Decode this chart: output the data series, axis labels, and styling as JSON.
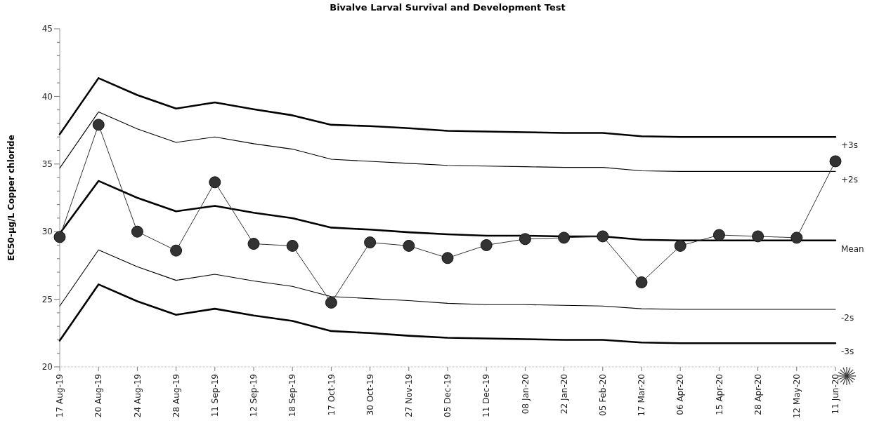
{
  "chart_data": {
    "type": "line",
    "title": "Bivalve Larval Survival and Development Test",
    "ylabel": "EC50-µg/L Copper chloride",
    "categories": [
      "17 Aug-19",
      "20 Aug-19",
      "24 Aug-19",
      "28 Aug-19",
      "11 Sep-19",
      "12 Sep-19",
      "18 Sep-19",
      "17 Oct-19",
      "30 Oct-19",
      "27 Nov-19",
      "05 Dec-19",
      "11 Dec-19",
      "08 Jan-20",
      "22 Jan-20",
      "05 Feb-20",
      "17 Mar-20",
      "06 Apr-20",
      "15 Apr-20",
      "28 Apr-20",
      "12 May-20",
      "11 Jun-20"
    ],
    "ylim": [
      20,
      45
    ],
    "yticks": [
      20,
      {
        "value": 21,
        "label": null
      },
      {
        "value": 22,
        "label": null
      },
      {
        "value": 23,
        "label": null
      },
      {
        "value": 24,
        "label": null
      },
      25,
      {
        "value": 26,
        "label": null
      },
      {
        "value": 27,
        "label": null
      },
      {
        "value": 28,
        "label": null
      },
      {
        "value": 29,
        "label": null
      },
      30,
      {
        "value": 31,
        "label": null
      },
      {
        "value": 32,
        "label": null
      },
      {
        "value": 33,
        "label": null
      },
      {
        "value": 34,
        "label": null
      },
      35,
      {
        "value": 36,
        "label": null
      },
      {
        "value": 37,
        "label": null
      },
      {
        "value": 38,
        "label": null
      },
      {
        "value": 39,
        "label": null
      },
      40,
      {
        "value": 41,
        "label": null
      },
      {
        "value": 42,
        "label": null
      },
      {
        "value": 43,
        "label": null
      },
      {
        "value": 44,
        "label": null
      },
      45
    ],
    "grid": false,
    "line_style": "solid",
    "series": [
      {
        "name": "+3s",
        "color": "#000000",
        "marker": "none",
        "values": [
          37.2,
          41.35,
          40.1,
          39.1,
          39.55,
          39.05,
          38.6,
          37.9,
          37.8,
          37.65,
          37.45,
          37.4,
          37.35,
          37.3,
          37.3,
          37.05,
          37.0,
          37.0,
          37.0,
          37.0,
          37.0
        ]
      },
      {
        "name": "+2s",
        "color": "#000000",
        "marker": "none",
        "values": [
          34.7,
          38.85,
          37.6,
          36.6,
          37.0,
          36.5,
          36.1,
          35.35,
          35.2,
          35.05,
          34.9,
          34.85,
          34.8,
          34.75,
          34.75,
          34.5,
          34.45,
          34.45,
          34.45,
          34.45,
          34.45
        ]
      },
      {
        "name": "Mean",
        "color": "#000000",
        "marker": "none",
        "values": [
          29.85,
          33.75,
          32.5,
          31.5,
          31.9,
          31.4,
          31.0,
          30.3,
          30.15,
          29.95,
          29.8,
          29.7,
          29.7,
          29.65,
          29.65,
          29.4,
          29.35,
          29.35,
          29.35,
          29.35,
          29.35
        ]
      },
      {
        "name": "-2s",
        "color": "#000000",
        "marker": "none",
        "values": [
          24.5,
          28.65,
          27.4,
          26.4,
          26.85,
          26.35,
          25.95,
          25.2,
          25.05,
          24.9,
          24.7,
          24.6,
          24.6,
          24.55,
          24.5,
          24.3,
          24.25,
          24.25,
          24.25,
          24.25,
          24.25
        ]
      },
      {
        "name": "-3s",
        "color": "#000000",
        "marker": "none",
        "values": [
          21.95,
          26.1,
          24.85,
          23.85,
          24.3,
          23.8,
          23.4,
          22.65,
          22.5,
          22.3,
          22.15,
          22.1,
          22.05,
          22.0,
          22.0,
          21.8,
          21.75,
          21.75,
          21.75,
          21.75,
          21.75
        ]
      },
      {
        "color": "#333333",
        "marker": "circle",
        "values": [
          29.6,
          37.9,
          30.0,
          28.6,
          33.65,
          29.1,
          28.95,
          24.75,
          29.2,
          28.95,
          28.05,
          29.0,
          29.45,
          29.55,
          29.65,
          26.25,
          28.95,
          29.75,
          29.65,
          29.55,
          35.2
        ]
      }
    ]
  }
}
